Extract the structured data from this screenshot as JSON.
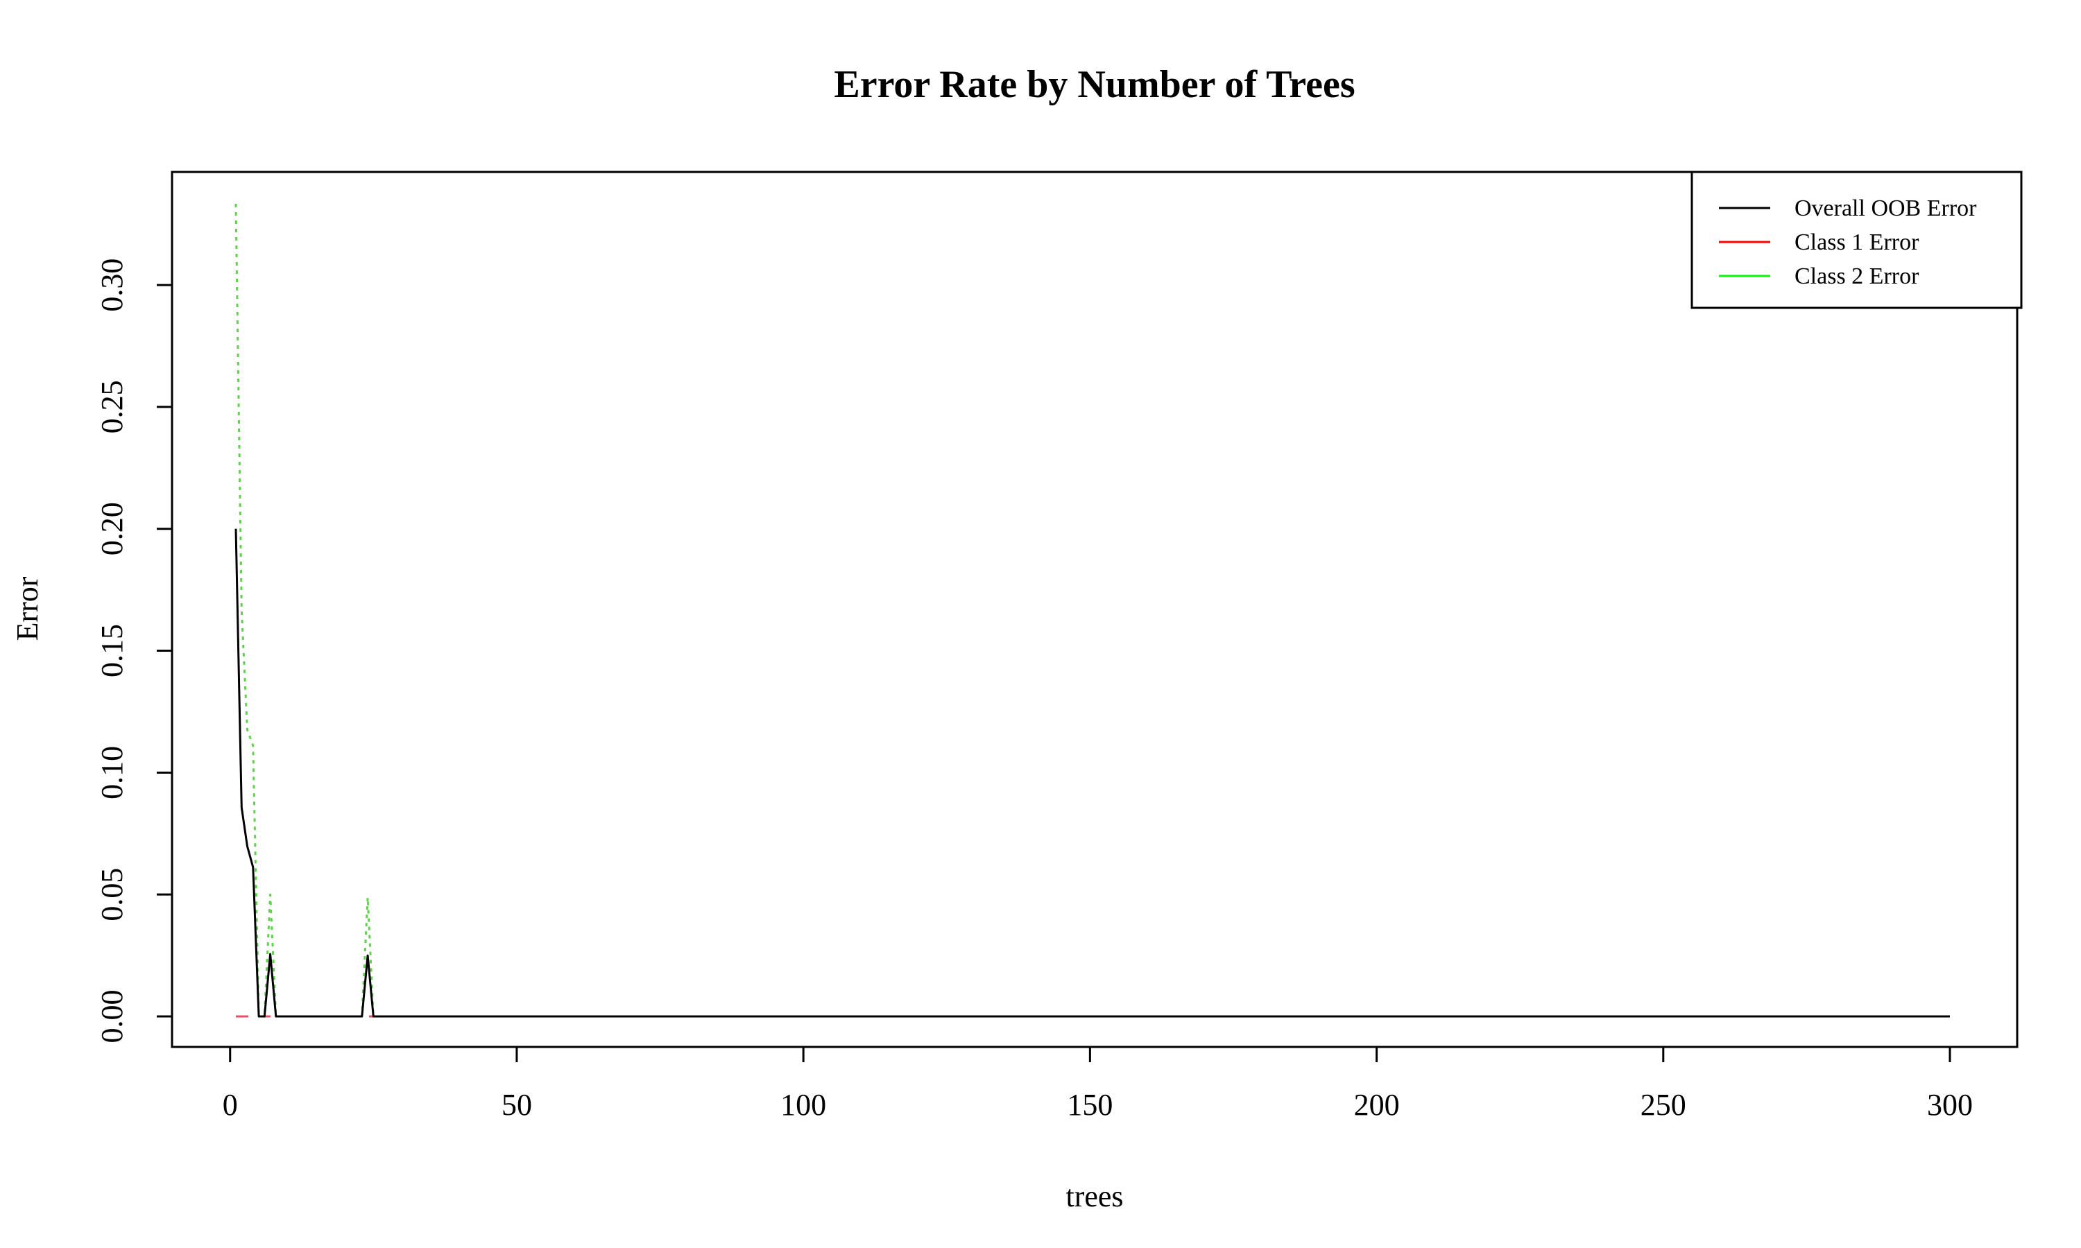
{
  "chart_data": {
    "type": "line",
    "title": "Error Rate by Number of Trees",
    "xlabel": "trees",
    "ylabel": "Error",
    "xlim": [
      1,
      300
    ],
    "ylim": [
      0,
      0.3333
    ],
    "x_ticks": [
      0,
      50,
      100,
      150,
      200,
      250,
      300
    ],
    "x_tick_labels": [
      "0",
      "50",
      "100",
      "150",
      "200",
      "250",
      "300"
    ],
    "y_ticks": [
      0,
      0.05,
      0.1,
      0.15,
      0.2,
      0.25,
      0.3
    ],
    "y_tick_labels": [
      "0.00",
      "0.05",
      "0.10",
      "0.15",
      "0.20",
      "0.25",
      "0.30"
    ],
    "grid": false,
    "legend_position": "top-right",
    "series": [
      {
        "name": "Overall OOB Error",
        "color": "#000000",
        "dash": "solid",
        "points": [
          [
            1,
            0.2
          ],
          [
            2,
            0.0857
          ],
          [
            3,
            0.0698
          ],
          [
            4,
            0.0612
          ],
          [
            5,
            0.0
          ],
          [
            6,
            0.0
          ],
          [
            7,
            0.0256
          ],
          [
            8,
            0.0
          ],
          [
            23,
            0.0
          ],
          [
            24,
            0.025
          ],
          [
            25,
            0.0
          ],
          [
            300,
            0.0
          ]
        ]
      },
      {
        "name": "Class 1 Error",
        "color": "#DF536B",
        "dash": "dashed",
        "points": [
          [
            1,
            0.0
          ],
          [
            300,
            0.0
          ]
        ]
      },
      {
        "name": "Class 2 Error",
        "color": "#61D04F",
        "dash": "dotted",
        "points": [
          [
            1,
            0.3333
          ],
          [
            2,
            0.1667
          ],
          [
            3,
            0.1176
          ],
          [
            4,
            0.1111
          ],
          [
            5,
            0.0
          ],
          [
            6,
            0.0
          ],
          [
            7,
            0.05
          ],
          [
            8,
            0.0
          ],
          [
            23,
            0.0
          ],
          [
            24,
            0.0488
          ],
          [
            25,
            0.0
          ],
          [
            300,
            0.0
          ]
        ]
      }
    ],
    "legend_colors": [
      "#000000",
      "#FF0000",
      "#00FF00"
    ]
  }
}
